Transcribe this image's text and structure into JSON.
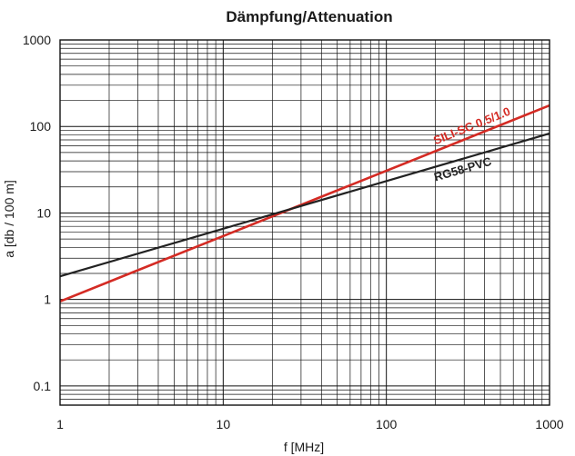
{
  "chart_data": {
    "type": "line",
    "title": "Dämpfung/Attenuation",
    "xlabel": "f [MHz]",
    "ylabel": "a  [db / 100 m]",
    "x_scale": "log",
    "y_scale": "log",
    "xlim": [
      1,
      1000
    ],
    "ylim": [
      0.06,
      1000
    ],
    "grid": true,
    "x_ticks": [
      1,
      10,
      100,
      1000
    ],
    "x_tick_labels": [
      "1",
      "10",
      "100",
      "1000"
    ],
    "y_ticks": [
      0.1,
      1,
      10,
      100,
      1000
    ],
    "y_tick_labels": [
      "0.1",
      "1",
      "10",
      "100",
      "1000"
    ],
    "series": [
      {
        "name": "SILI-SC 0.5/1.0",
        "color": "#d42b24",
        "x": [
          1,
          1000
        ],
        "y": [
          0.95,
          175
        ]
      },
      {
        "name": "RG58-PVC",
        "color": "#222222",
        "x": [
          1,
          1000
        ],
        "y": [
          1.85,
          83
        ]
      }
    ]
  }
}
